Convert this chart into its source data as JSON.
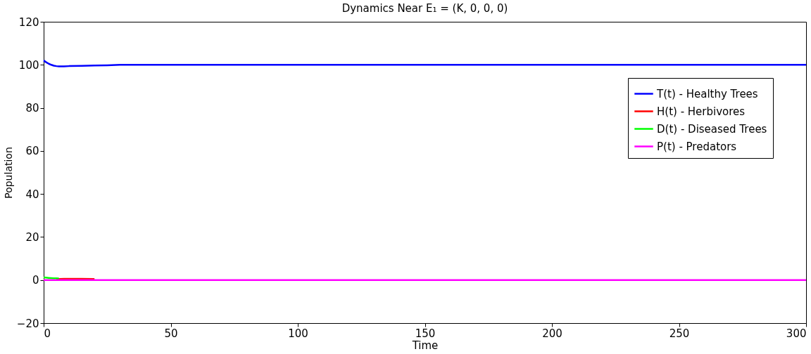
{
  "chart_data": {
    "type": "line",
    "title": "Dynamics Near E₁ = (K, 0, 0, 0)",
    "xlabel": "Time",
    "ylabel": "Population",
    "x": [
      0,
      1,
      2,
      3,
      4,
      5,
      6,
      8,
      10,
      15,
      20,
      25,
      30,
      40,
      60,
      100,
      150,
      200,
      250,
      300
    ],
    "series": [
      {
        "name": "T(t) - Healthy Trees",
        "color": "#0000ff",
        "values": [
          102,
          101.2,
          100.5,
          100,
          99.6,
          99.4,
          99.3,
          99.3,
          99.4,
          99.5,
          99.7,
          99.8,
          100,
          100,
          100,
          100,
          100,
          100,
          100,
          100
        ]
      },
      {
        "name": "H(t) - Herbivores",
        "color": "#ff0000",
        "values": [
          null,
          null,
          null,
          null,
          null,
          0.5,
          0.5,
          0.6,
          0.6,
          0.6,
          0.5,
          null,
          null,
          null,
          null,
          null,
          null,
          null,
          null,
          null
        ]
      },
      {
        "name": "D(t) - Diseased Trees",
        "color": "#00ff00",
        "values": [
          1.2,
          1.1,
          1,
          0.9,
          0.8,
          0.8,
          0.7,
          null,
          null,
          null,
          null,
          null,
          null,
          null,
          null,
          null,
          null,
          null,
          null,
          null
        ]
      },
      {
        "name": "P(t) - Predators",
        "color": "#ff00ff",
        "values": [
          0,
          0,
          0,
          0,
          0,
          0,
          0,
          0,
          0,
          0,
          0,
          0,
          0,
          0,
          0,
          0,
          0,
          0,
          0,
          0
        ]
      }
    ],
    "xlim": [
      0,
      300
    ],
    "xticks": [
      0,
      50,
      100,
      150,
      200,
      250,
      300
    ],
    "ylim": [
      -20,
      120
    ],
    "yticks": [
      -20,
      0,
      20,
      40,
      60,
      80,
      100,
      120
    ],
    "grid": false,
    "legend": "top right",
    "line_style": "solid",
    "marker": "none"
  }
}
